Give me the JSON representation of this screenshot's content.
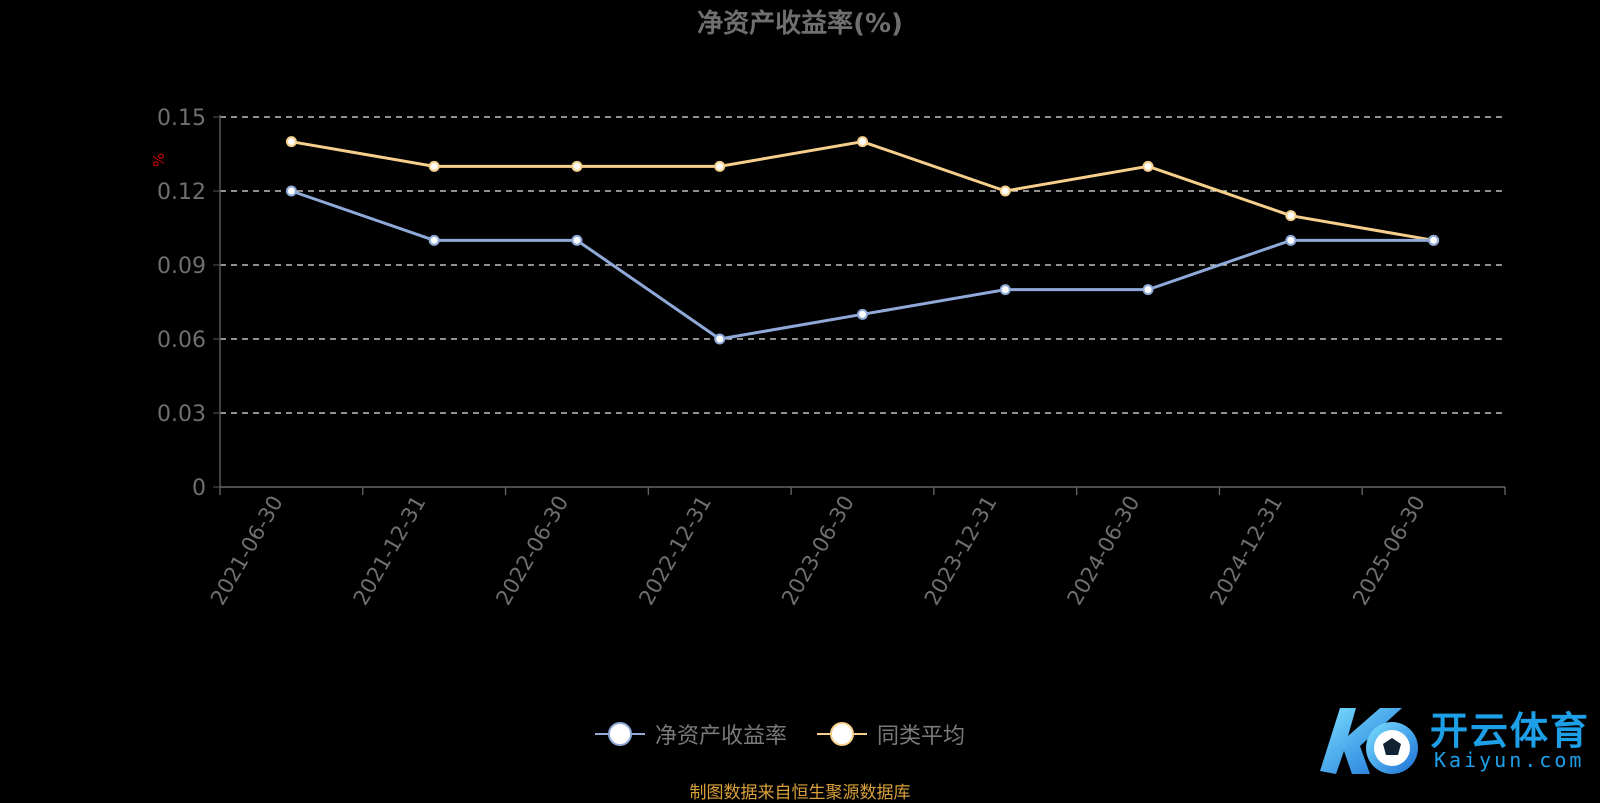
{
  "chart_data": {
    "type": "line",
    "title": "净资产收益率(%)",
    "ylabel": "%",
    "xlabel": "",
    "x": [
      "2021-06-30",
      "2021-12-31",
      "2022-06-30",
      "2022-12-31",
      "2023-06-30",
      "2023-12-31",
      "2024-06-30",
      "2024-12-31",
      "2025-06-30"
    ],
    "ylim": [
      0,
      0.15
    ],
    "yticks": [
      "0",
      "0.03",
      "0.06",
      "0.09",
      "0.12",
      "0.15"
    ],
    "grid": true,
    "legend_position": "bottom",
    "series": [
      {
        "name": "净资产收益率",
        "color": "#8fa9d8",
        "values": [
          0.12,
          0.1,
          0.1,
          0.06,
          0.07,
          0.08,
          0.08,
          0.1,
          0.1
        ]
      },
      {
        "name": "同类平均",
        "color": "#f5cf8b",
        "values": [
          0.14,
          0.13,
          0.13,
          0.13,
          0.14,
          0.12,
          0.13,
          0.11,
          0.1
        ]
      }
    ]
  },
  "footer": {
    "source": "制图数据来自恒生聚源数据库"
  },
  "logo": {
    "text_cn": "开云体育",
    "text_en": "Kaiyun.com",
    "icon": "soccer-ball-icon"
  }
}
